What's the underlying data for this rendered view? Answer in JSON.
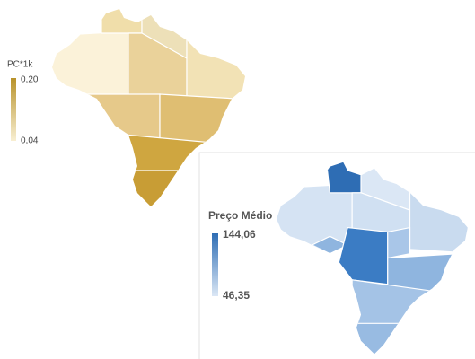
{
  "maps": [
    {
      "legend": {
        "title": "PC*1k",
        "max_label": "0,20",
        "min_label": "0,04"
      }
    },
    {
      "legend": {
        "title": "Preço Médio",
        "max_label": "144,06",
        "min_label": "46,35"
      }
    }
  ]
}
